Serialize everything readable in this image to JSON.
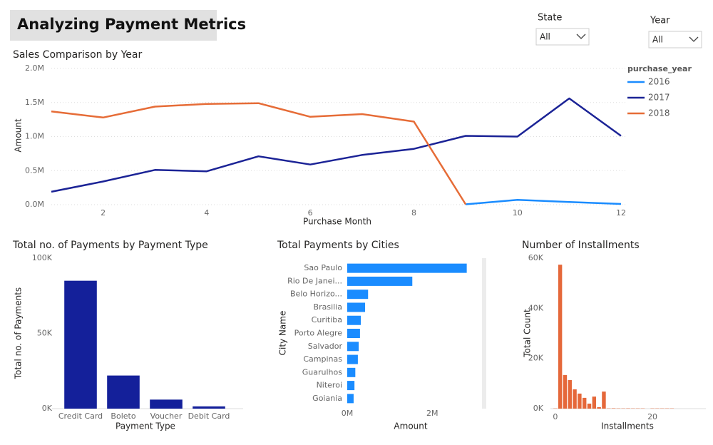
{
  "header": {
    "title": "Analyzing Payment Metrics",
    "filters": [
      {
        "label": "State",
        "value": "All"
      },
      {
        "label": "Year",
        "value": "All"
      }
    ]
  },
  "chart_data": [
    {
      "type": "line",
      "title": "Sales Comparison by Year",
      "x_label": "Purchase Month",
      "y_label": "Amount",
      "x": [
        1,
        2,
        3,
        4,
        5,
        6,
        7,
        8,
        9,
        10,
        11,
        12
      ],
      "legend_title": "purchase_year",
      "series": [
        {
          "name": "2016",
          "color": "#1a8cff",
          "values": [
            null,
            null,
            null,
            null,
            null,
            null,
            null,
            null,
            5000,
            70000,
            40000,
            10000
          ]
        },
        {
          "name": "2017",
          "color": "#1b2396",
          "values": [
            190000,
            340000,
            510000,
            490000,
            710000,
            590000,
            730000,
            820000,
            1010000,
            1000000,
            1560000,
            1010000
          ]
        },
        {
          "name": "2018",
          "color": "#e66c37",
          "values": [
            1370000,
            1280000,
            1440000,
            1480000,
            1490000,
            1290000,
            1330000,
            1220000,
            5000,
            null,
            null,
            null
          ]
        }
      ],
      "xlim": [
        1,
        12
      ],
      "xticks": [
        2,
        4,
        6,
        8,
        10,
        12
      ],
      "ylim": [
        0,
        2000000
      ],
      "yticks": [
        {
          "value": 0,
          "label": "0.0M"
        },
        {
          "value": 500000,
          "label": "0.5M"
        },
        {
          "value": 1000000,
          "label": "1.0M"
        },
        {
          "value": 1500000,
          "label": "1.5M"
        },
        {
          "value": 2000000,
          "label": "2.0M"
        }
      ],
      "grid": true,
      "legend": "right"
    },
    {
      "type": "bar",
      "orientation": "vertical",
      "title": "Total no. of Payments by Payment Type",
      "x_label": "Payment Type",
      "y_label": "Total no. of Payments",
      "categories": [
        "Credit Card",
        "Boleto",
        "Voucher",
        "Debit Card"
      ],
      "values": [
        85000,
        22000,
        6000,
        1500
      ],
      "color": "#14209a",
      "ylim": [
        0,
        100000
      ],
      "yticks": [
        {
          "value": 0,
          "label": "0K"
        },
        {
          "value": 50000,
          "label": "50K"
        },
        {
          "value": 100000,
          "label": "100K"
        }
      ],
      "grid": false
    },
    {
      "type": "bar",
      "orientation": "horizontal",
      "title": "Total Payments by Cities",
      "x_label": "Amount",
      "y_label": "City Name",
      "categories": [
        "Sao Paulo",
        "Rio De Janei...",
        "Belo Horizo...",
        "Brasilia",
        "Curitiba",
        "Porto Alegre",
        "Salvador",
        "Campinas",
        "Guarulhos",
        "Niteroi",
        "Goiania"
      ],
      "values": [
        2810000,
        1530000,
        490000,
        420000,
        320000,
        300000,
        270000,
        250000,
        190000,
        170000,
        150000
      ],
      "color": "#1a8cff",
      "xlim": [
        0,
        2900000
      ],
      "xticks": [
        {
          "value": 0,
          "label": "0M"
        },
        {
          "value": 2000000,
          "label": "2M"
        }
      ],
      "grid": false
    },
    {
      "type": "bar",
      "orientation": "vertical",
      "title": "Number of Installments",
      "x_label": "Installments",
      "y_label": "Total Count",
      "x": [
        0,
        1,
        2,
        3,
        4,
        5,
        6,
        7,
        8,
        9,
        10,
        11,
        12,
        13,
        14,
        15,
        16,
        17,
        18,
        20,
        21,
        22,
        23,
        24
      ],
      "values": [
        100,
        57400,
        13400,
        11400,
        7700,
        6000,
        4300,
        2000,
        4800,
        600,
        6800,
        100,
        150,
        100,
        100,
        120,
        100,
        100,
        100,
        100,
        100,
        100,
        100,
        100
      ],
      "color": "#e5683a",
      "xlim": [
        -1,
        31
      ],
      "xticks": [
        0,
        20
      ],
      "ylim": [
        0,
        60000
      ],
      "yticks": [
        {
          "value": 0,
          "label": "0K"
        },
        {
          "value": 20000,
          "label": "20K"
        },
        {
          "value": 40000,
          "label": "40K"
        },
        {
          "value": 60000,
          "label": "60K"
        }
      ],
      "grid": false
    }
  ]
}
